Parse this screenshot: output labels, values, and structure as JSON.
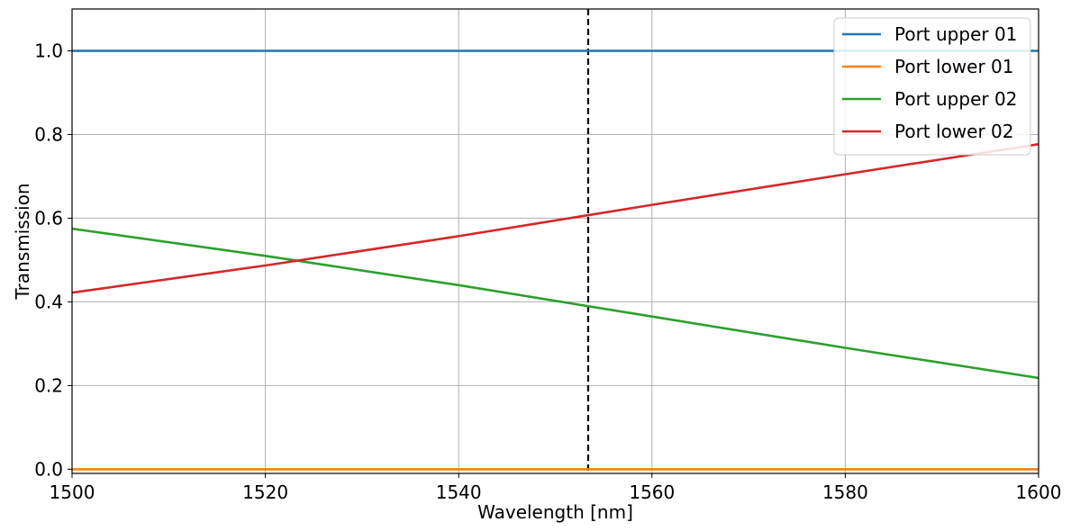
{
  "chart_data": {
    "type": "line",
    "title": "",
    "xlabel": "Wavelength [nm]",
    "ylabel": "Transmission",
    "xlim": [
      1500,
      1600
    ],
    "ylim": [
      -0.01,
      1.1
    ],
    "xticks": [
      1500,
      1520,
      1540,
      1560,
      1580,
      1600
    ],
    "xtick_labels": [
      "1500",
      "1520",
      "1540",
      "1560",
      "1580",
      "1600"
    ],
    "yticks": [
      0.0,
      0.2,
      0.4,
      0.6,
      0.8,
      1.0
    ],
    "ytick_labels": [
      "0.0",
      "0.2",
      "0.4",
      "0.6",
      "0.8",
      "1.0"
    ],
    "grid": true,
    "legend_position": "top-right",
    "vline": {
      "x": 1553.4,
      "style": "dashed",
      "color": "#000000"
    },
    "series": [
      {
        "name": "Port upper 01",
        "color": "#1f77b4",
        "x": [
          1500,
          1600
        ],
        "y": [
          1.0,
          1.0
        ]
      },
      {
        "name": "Port lower 01",
        "color": "#ff7f0e",
        "x": [
          1500,
          1600
        ],
        "y": [
          0.0,
          0.0
        ]
      },
      {
        "name": "Port upper 02",
        "color": "#2ca02c",
        "x": [
          1500,
          1520,
          1540,
          1560,
          1580,
          1600
        ],
        "y": [
          0.575,
          0.51,
          0.44,
          0.365,
          0.29,
          0.218
        ]
      },
      {
        "name": "Port lower 02",
        "color": "#d62728",
        "x": [
          1500,
          1520,
          1540,
          1560,
          1580,
          1600
        ],
        "y": [
          0.422,
          0.487,
          0.557,
          0.632,
          0.705,
          0.777
        ]
      }
    ]
  }
}
